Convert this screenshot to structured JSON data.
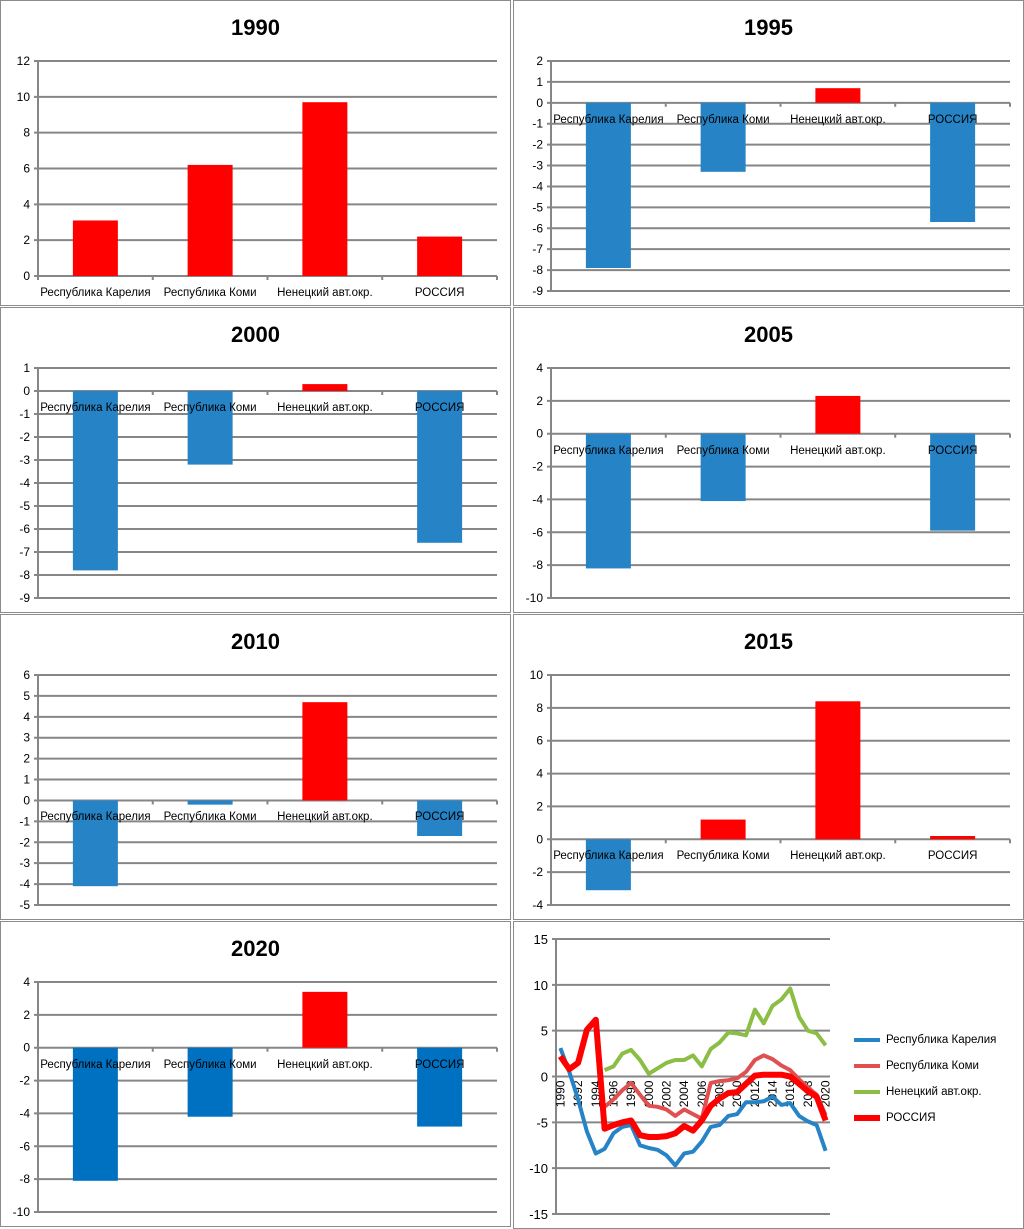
{
  "categories": [
    "Республика Карелия",
    "Республика Коми",
    "Ненецкий авт.окр.",
    "РОССИЯ"
  ],
  "colors": {
    "positive": "#ff0000",
    "negative": "#2683c6",
    "negative_2020": "#0070c0",
    "grid": "#868686"
  },
  "chart_data": [
    {
      "type": "bar",
      "title": "1990",
      "categories": [
        "Республика Карелия",
        "Республика Коми",
        "Ненецкий авт.окр.",
        "РОССИЯ"
      ],
      "values": [
        3.1,
        6.2,
        9.7,
        2.2
      ],
      "ylim": [
        0,
        12
      ],
      "yticks": [
        0,
        2,
        4,
        6,
        8,
        10,
        12
      ]
    },
    {
      "type": "bar",
      "title": "1995",
      "categories": [
        "Республика Карелия",
        "Республика Коми",
        "Ненецкий авт.окр.",
        "РОССИЯ"
      ],
      "values": [
        -7.9,
        -3.3,
        0.7,
        -5.7
      ],
      "ylim": [
        -9,
        2
      ],
      "yticks": [
        -9,
        -8,
        -7,
        -6,
        -5,
        -4,
        -3,
        -2,
        -1,
        0,
        1,
        2
      ]
    },
    {
      "type": "bar",
      "title": "2000",
      "categories": [
        "Республика Карелия",
        "Республика Коми",
        "Ненецкий авт.окр.",
        "РОССИЯ"
      ],
      "values": [
        -7.8,
        -3.2,
        0.3,
        -6.6
      ],
      "ylim": [
        -9,
        1
      ],
      "yticks": [
        -9,
        -8,
        -7,
        -6,
        -5,
        -4,
        -3,
        -2,
        -1,
        0,
        1
      ]
    },
    {
      "type": "bar",
      "title": "2005",
      "categories": [
        "Республика Карелия",
        "Республика Коми",
        "Ненецкий авт.окр.",
        "РОССИЯ"
      ],
      "values": [
        -8.2,
        -4.1,
        2.3,
        -5.9
      ],
      "ylim": [
        -10,
        4
      ],
      "yticks": [
        -10,
        -8,
        -6,
        -4,
        -2,
        0,
        2,
        4
      ]
    },
    {
      "type": "bar",
      "title": "2010",
      "categories": [
        "Республика Карелия",
        "Республика Коми",
        "Ненецкий авт.окр.",
        "РОССИЯ"
      ],
      "values": [
        -4.1,
        -0.2,
        4.7,
        -1.7
      ],
      "ylim": [
        -5,
        6
      ],
      "yticks": [
        -5,
        -4,
        -3,
        -2,
        -1,
        0,
        1,
        2,
        3,
        4,
        5,
        6
      ]
    },
    {
      "type": "bar",
      "title": "2015",
      "categories": [
        "Республика Карелия",
        "Республика Коми",
        "Ненецкий авт.окр.",
        "РОССИЯ"
      ],
      "values": [
        -3.1,
        1.2,
        8.4,
        0.2
      ],
      "ylim": [
        -4,
        10
      ],
      "yticks": [
        -4,
        -2,
        0,
        2,
        4,
        6,
        8,
        10
      ]
    },
    {
      "type": "bar",
      "title": "2020",
      "categories": [
        "Республика Карелия",
        "Республика Коми",
        "Ненецкий авт.окр.",
        "РОССИЯ"
      ],
      "values": [
        -8.1,
        -4.2,
        3.4,
        -4.8
      ],
      "ylim": [
        -10,
        4
      ],
      "yticks": [
        -10,
        -8,
        -6,
        -4,
        -2,
        0,
        2,
        4
      ]
    },
    {
      "type": "line",
      "title": "",
      "x": [
        1990,
        1991,
        1992,
        1993,
        1994,
        1995,
        1996,
        1997,
        1998,
        1999,
        2000,
        2001,
        2002,
        2003,
        2004,
        2005,
        2006,
        2007,
        2008,
        2009,
        2010,
        2011,
        2012,
        2013,
        2014,
        2015,
        2016,
        2017,
        2018,
        2019,
        2020
      ],
      "xtick_labels": [
        "1990",
        "1992",
        "1994",
        "1996",
        "1998",
        "2000",
        "2002",
        "2004",
        "2006",
        "2008",
        "2010",
        "2012",
        "2014",
        "2016",
        "2018",
        "2020"
      ],
      "ylim": [
        -15,
        15
      ],
      "yticks": [
        -15,
        -10,
        -5,
        0,
        5,
        10,
        15
      ],
      "legend": "right",
      "series": [
        {
          "name": "Республика Карелия",
          "color": "#2683c6",
          "width": 4,
          "values": [
            3.1,
            0.5,
            -2.5,
            -6.0,
            -8.4,
            -7.9,
            -6.2,
            -5.5,
            -5.3,
            -7.5,
            -7.8,
            -8.0,
            -8.6,
            -9.7,
            -8.4,
            -8.2,
            -7.1,
            -5.5,
            -5.3,
            -4.3,
            -4.1,
            -2.8,
            -2.8,
            -2.7,
            -2.2,
            -3.1,
            -2.9,
            -4.3,
            -4.9,
            -5.3,
            -8.1
          ]
        },
        {
          "name": "Республика Коми",
          "color": "#e05050",
          "width": 4,
          "values": [
            null,
            null,
            null,
            null,
            null,
            -3.3,
            -2.5,
            -1.5,
            -0.7,
            -2.0,
            -3.2,
            -3.3,
            -3.6,
            -4.3,
            -3.6,
            -4.1,
            -4.6,
            -0.7,
            -0.5,
            -0.4,
            -0.2,
            0.5,
            1.8,
            2.3,
            1.9,
            1.2,
            0.7,
            -0.3,
            -1.2,
            -2.0,
            -4.2
          ]
        },
        {
          "name": "Ненецкий авт.окр.",
          "color": "#8cbd45",
          "width": 4,
          "values": [
            null,
            null,
            null,
            null,
            null,
            0.7,
            1.1,
            2.5,
            2.9,
            1.8,
            0.3,
            0.9,
            1.5,
            1.8,
            1.8,
            2.3,
            1.1,
            3.0,
            3.7,
            4.8,
            4.7,
            4.5,
            7.3,
            5.8,
            7.7,
            8.4,
            9.6,
            6.5,
            5.0,
            4.7,
            3.4
          ]
        },
        {
          "name": "РОССИЯ",
          "color": "#ff0000",
          "width": 6,
          "values": [
            2.2,
            0.8,
            1.5,
            5.1,
            6.2,
            -5.7,
            -5.3,
            -5.0,
            -4.8,
            -6.4,
            -6.6,
            -6.6,
            -6.5,
            -6.2,
            -5.4,
            -5.9,
            -4.8,
            -3.2,
            -2.4,
            -1.8,
            -1.7,
            -0.8,
            0.1,
            0.2,
            0.2,
            0.2,
            0.0,
            -0.8,
            -1.6,
            -2.2,
            -4.8
          ]
        }
      ]
    }
  ]
}
